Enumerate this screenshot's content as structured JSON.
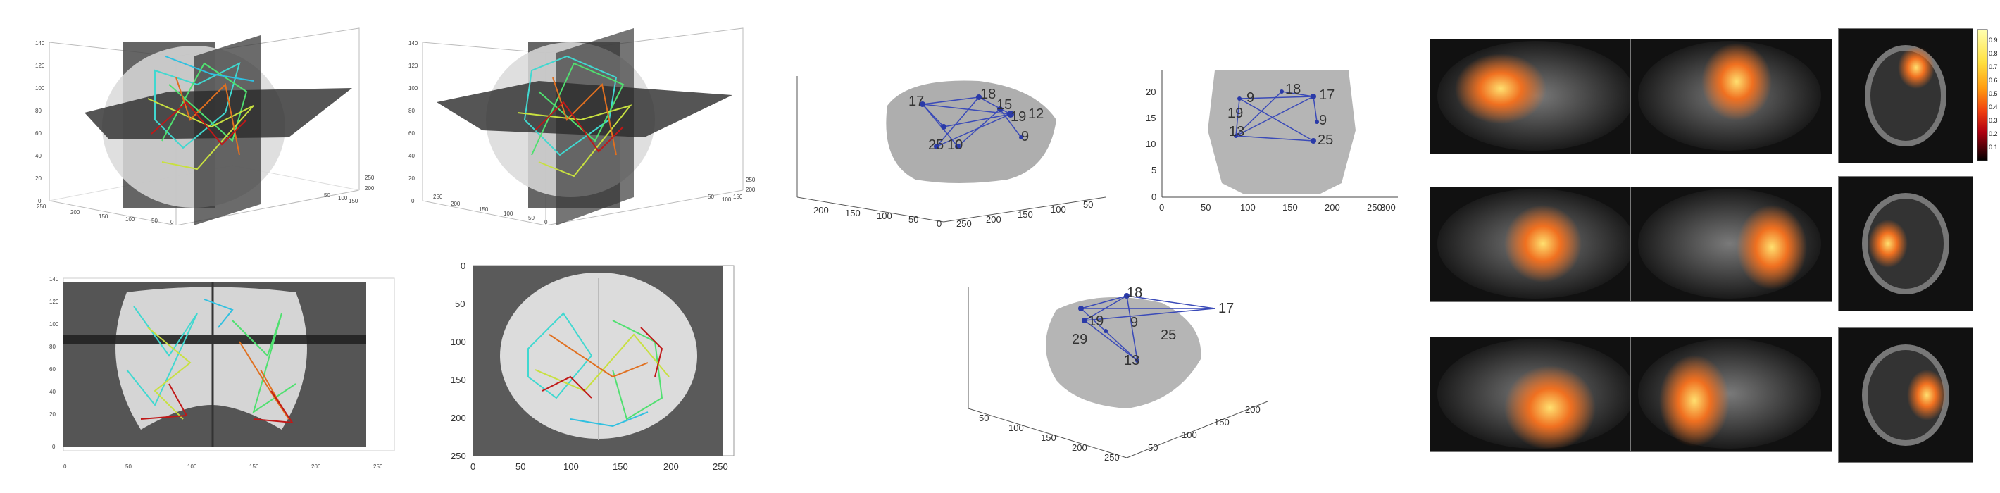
{
  "panel_a": {
    "z_ticks": [
      "140",
      "120",
      "100",
      "80",
      "60",
      "40",
      "20",
      "0"
    ],
    "x_ticks": [
      "250",
      "200",
      "150",
      "100",
      "50",
      "0"
    ],
    "y_ticks": [
      "50",
      "100",
      "150",
      "200",
      "250"
    ]
  },
  "panel_b": {
    "z_ticks": [
      "140",
      "120",
      "100",
      "80",
      "60",
      "40",
      "20",
      "0"
    ],
    "x_ticks": [
      "250",
      "200",
      "150",
      "100",
      "50",
      "0"
    ],
    "y_ticks": [
      "50",
      "100",
      "150",
      "200",
      "250"
    ]
  },
  "panel_c": {
    "z_ticks": [
      "140",
      "120",
      "100",
      "80",
      "60",
      "40",
      "20",
      "0"
    ],
    "x_ticks": [
      "0",
      "50",
      "100",
      "150",
      "200",
      "250"
    ]
  },
  "panel_d": {
    "y_ticks": [
      "0",
      "50",
      "100",
      "150",
      "200",
      "250"
    ],
    "x_ticks": [
      "0",
      "50",
      "100",
      "150",
      "200",
      "250"
    ]
  },
  "panel_e": {
    "x_ticks": [
      "200",
      "150",
      "100",
      "50",
      "0"
    ],
    "y_ticks": [
      "250",
      "200",
      "150",
      "100",
      "50"
    ],
    "nodes": [
      "17",
      "18",
      "15",
      "12",
      "19",
      "9",
      "25",
      "10"
    ]
  },
  "panel_f": {
    "y_ticks": [
      "20",
      "15",
      "10",
      "5",
      "0"
    ],
    "x_ticks": [
      "0",
      "50",
      "100",
      "150",
      "200",
      "250",
      "300"
    ],
    "nodes": [
      "18",
      "9",
      "17",
      "19",
      "13",
      "9",
      "25"
    ]
  },
  "panel_g": {
    "x_ticks": [
      "50",
      "100",
      "150",
      "200",
      "250"
    ],
    "y_ticks": [
      "50",
      "100",
      "150",
      "200"
    ],
    "nodes": [
      "18",
      "17",
      "19",
      "9",
      "25",
      "29",
      "13"
    ]
  },
  "colorbar": {
    "ticks": [
      "0.9",
      "0.8",
      "0.7",
      "0.6",
      "0.5",
      "0.4",
      "0.3",
      "0.2",
      "0.1"
    ],
    "colors": [
      "#ffffb0",
      "#ffe040",
      "#ff9a10",
      "#f04010",
      "#b00010",
      "#500008",
      "#000000"
    ]
  }
}
